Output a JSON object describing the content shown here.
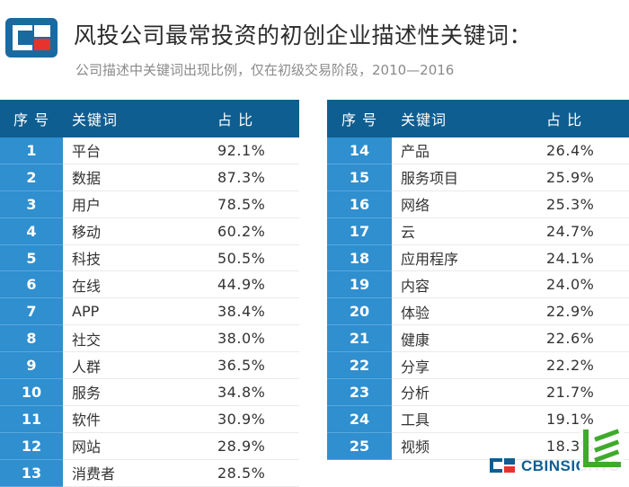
{
  "header": {
    "title": "风投公司最常投资的初创企业描述性关键词：",
    "subtitle": "公司描述中关键词出现比例，仅在初级交易阶段，2010—2016"
  },
  "colors": {
    "header_bg": "#0f5e91",
    "rank_bg": "#2f8fcf",
    "logo_blue": "#1a6aa1",
    "logo_red": "#e8322e",
    "corner_green": "#3faa2b"
  },
  "footer": {
    "brand": "CBINSIGHTS"
  },
  "chart_data": {
    "type": "table",
    "columns": [
      "序 号",
      "关键词",
      "占 比"
    ],
    "rows": [
      {
        "rank": "1",
        "keyword": "平台",
        "pct": "92.1%"
      },
      {
        "rank": "2",
        "keyword": "数据",
        "pct": "87.3%"
      },
      {
        "rank": "3",
        "keyword": "用户",
        "pct": "78.5%"
      },
      {
        "rank": "4",
        "keyword": "移动",
        "pct": "60.2%"
      },
      {
        "rank": "5",
        "keyword": "科技",
        "pct": "50.5%"
      },
      {
        "rank": "6",
        "keyword": "在线",
        "pct": "44.9%"
      },
      {
        "rank": "7",
        "keyword": "APP",
        "pct": "38.4%"
      },
      {
        "rank": "8",
        "keyword": "社交",
        "pct": "38.0%"
      },
      {
        "rank": "9",
        "keyword": "人群",
        "pct": "36.5%"
      },
      {
        "rank": "10",
        "keyword": "服务",
        "pct": "34.8%"
      },
      {
        "rank": "11",
        "keyword": "软件",
        "pct": "30.9%"
      },
      {
        "rank": "12",
        "keyword": "网站",
        "pct": "28.9%"
      },
      {
        "rank": "13",
        "keyword": "消费者",
        "pct": "28.5%"
      },
      {
        "rank": "14",
        "keyword": "产品",
        "pct": "26.4%"
      },
      {
        "rank": "15",
        "keyword": "服务项目",
        "pct": "25.9%"
      },
      {
        "rank": "16",
        "keyword": "网络",
        "pct": "25.3%"
      },
      {
        "rank": "17",
        "keyword": "云",
        "pct": "24.7%"
      },
      {
        "rank": "18",
        "keyword": "应用程序",
        "pct": "24.1%"
      },
      {
        "rank": "19",
        "keyword": "内容",
        "pct": "24.0%"
      },
      {
        "rank": "20",
        "keyword": "体验",
        "pct": "22.9%"
      },
      {
        "rank": "21",
        "keyword": "健康",
        "pct": "22.6%"
      },
      {
        "rank": "22",
        "keyword": "分享",
        "pct": "22.2%"
      },
      {
        "rank": "23",
        "keyword": "分析",
        "pct": "21.7%"
      },
      {
        "rank": "24",
        "keyword": "工具",
        "pct": "19.1%"
      },
      {
        "rank": "25",
        "keyword": "视频",
        "pct": "18.3%"
      }
    ]
  }
}
